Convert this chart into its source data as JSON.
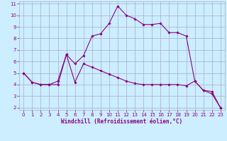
{
  "xlabel": "Windchill (Refroidissement éolien,°C)",
  "bg_color": "#cceeff",
  "grid_color": "#aaaacc",
  "line_color": "#880088",
  "xlim": [
    -0.5,
    23.5
  ],
  "ylim": [
    1.8,
    11.2
  ],
  "xticks": [
    0,
    1,
    2,
    3,
    4,
    5,
    6,
    7,
    8,
    9,
    10,
    11,
    12,
    13,
    14,
    15,
    16,
    17,
    18,
    19,
    20,
    21,
    22,
    23
  ],
  "yticks": [
    2,
    3,
    4,
    5,
    6,
    7,
    8,
    9,
    10,
    11
  ],
  "line1_x": [
    0,
    1,
    2,
    3,
    4,
    5,
    6,
    7,
    8,
    9,
    10,
    11,
    12,
    13,
    14,
    15,
    16,
    17,
    18,
    19,
    20,
    21,
    22,
    23
  ],
  "line1_y": [
    5.0,
    4.2,
    4.0,
    4.0,
    4.3,
    6.6,
    5.8,
    6.5,
    8.2,
    8.4,
    9.3,
    10.8,
    10.0,
    9.7,
    9.2,
    9.2,
    9.3,
    8.5,
    8.5,
    8.2,
    4.3,
    3.5,
    3.4,
    2.0
  ],
  "line2_x": [
    0,
    1,
    2,
    3,
    4,
    5,
    6,
    7,
    8,
    9,
    10,
    11,
    12,
    13,
    14,
    15,
    16,
    17,
    18,
    19,
    20,
    21,
    22,
    23
  ],
  "line2_y": [
    5.0,
    4.2,
    4.0,
    4.0,
    4.0,
    6.6,
    4.2,
    5.8,
    5.5,
    5.2,
    4.9,
    4.6,
    4.3,
    4.1,
    4.0,
    4.0,
    4.0,
    4.0,
    4.0,
    3.9,
    4.3,
    3.5,
    3.2,
    2.0
  ]
}
